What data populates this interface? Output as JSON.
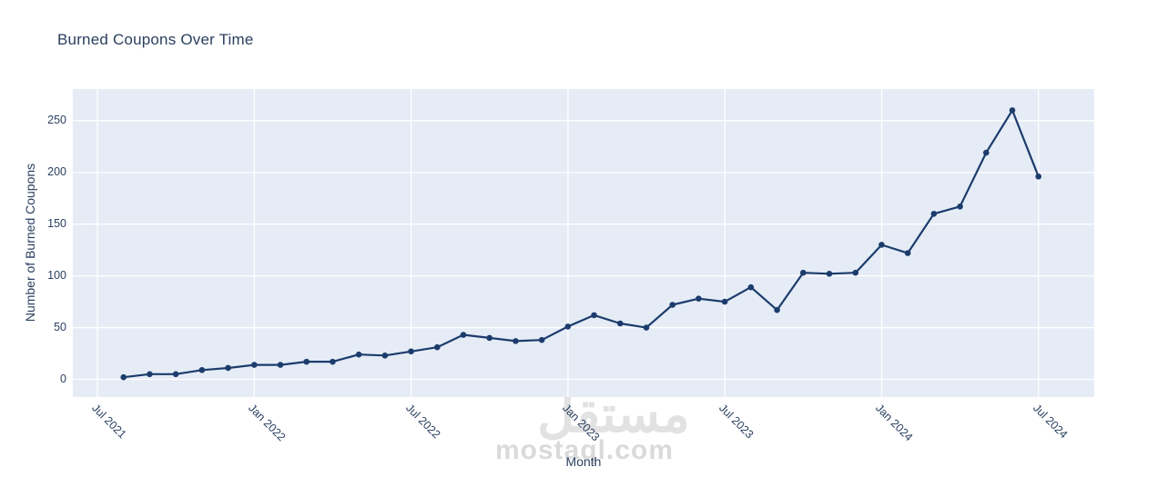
{
  "title": "Burned Coupons Over Time",
  "watermark": {
    "logo": "مستقل",
    "site": "mostaql.com"
  },
  "chart_data": {
    "type": "line",
    "title": "Burned Coupons Over Time",
    "xlabel": "Month",
    "ylabel": "Number of Burned Coupons",
    "x": [
      "Aug 2021",
      "Sep 2021",
      "Oct 2021",
      "Nov 2021",
      "Dec 2021",
      "Jan 2022",
      "Feb 2022",
      "Mar 2022",
      "Apr 2022",
      "May 2022",
      "Jun 2022",
      "Jul 2022",
      "Aug 2022",
      "Sep 2022",
      "Oct 2022",
      "Nov 2022",
      "Dec 2022",
      "Jan 2023",
      "Feb 2023",
      "Mar 2023",
      "Apr 2023",
      "May 2023",
      "Jun 2023",
      "Jul 2023",
      "Aug 2023",
      "Sep 2023",
      "Oct 2023",
      "Nov 2023",
      "Dec 2023",
      "Jan 2024",
      "Feb 2024",
      "Mar 2024",
      "Apr 2024",
      "May 2024",
      "Jun 2024",
      "Jul 2024"
    ],
    "values": [
      2,
      5,
      5,
      9,
      11,
      14,
      14,
      17,
      17,
      24,
      23,
      27,
      31,
      43,
      40,
      37,
      38,
      51,
      62,
      54,
      50,
      72,
      78,
      75,
      89,
      67,
      103,
      102,
      103,
      130,
      122,
      160,
      167,
      219,
      260,
      196
    ],
    "x_tick_labels": [
      "Jul 2021",
      "Jan 2022",
      "Jul 2022",
      "Jan 2023",
      "Jul 2023",
      "Jan 2024",
      "Jul 2024"
    ],
    "y_ticks": [
      0,
      50,
      100,
      150,
      200,
      250
    ],
    "ylim": [
      -17,
      281
    ],
    "grid": true,
    "legend": "none",
    "line_color": "#1c3c6c",
    "marker_color": "#1c3c6c",
    "grid_color": "#ffffff",
    "plot_bg": "#e5ecf6",
    "paper_bg": "#ffffff",
    "text_color": "#2a3f5f"
  }
}
